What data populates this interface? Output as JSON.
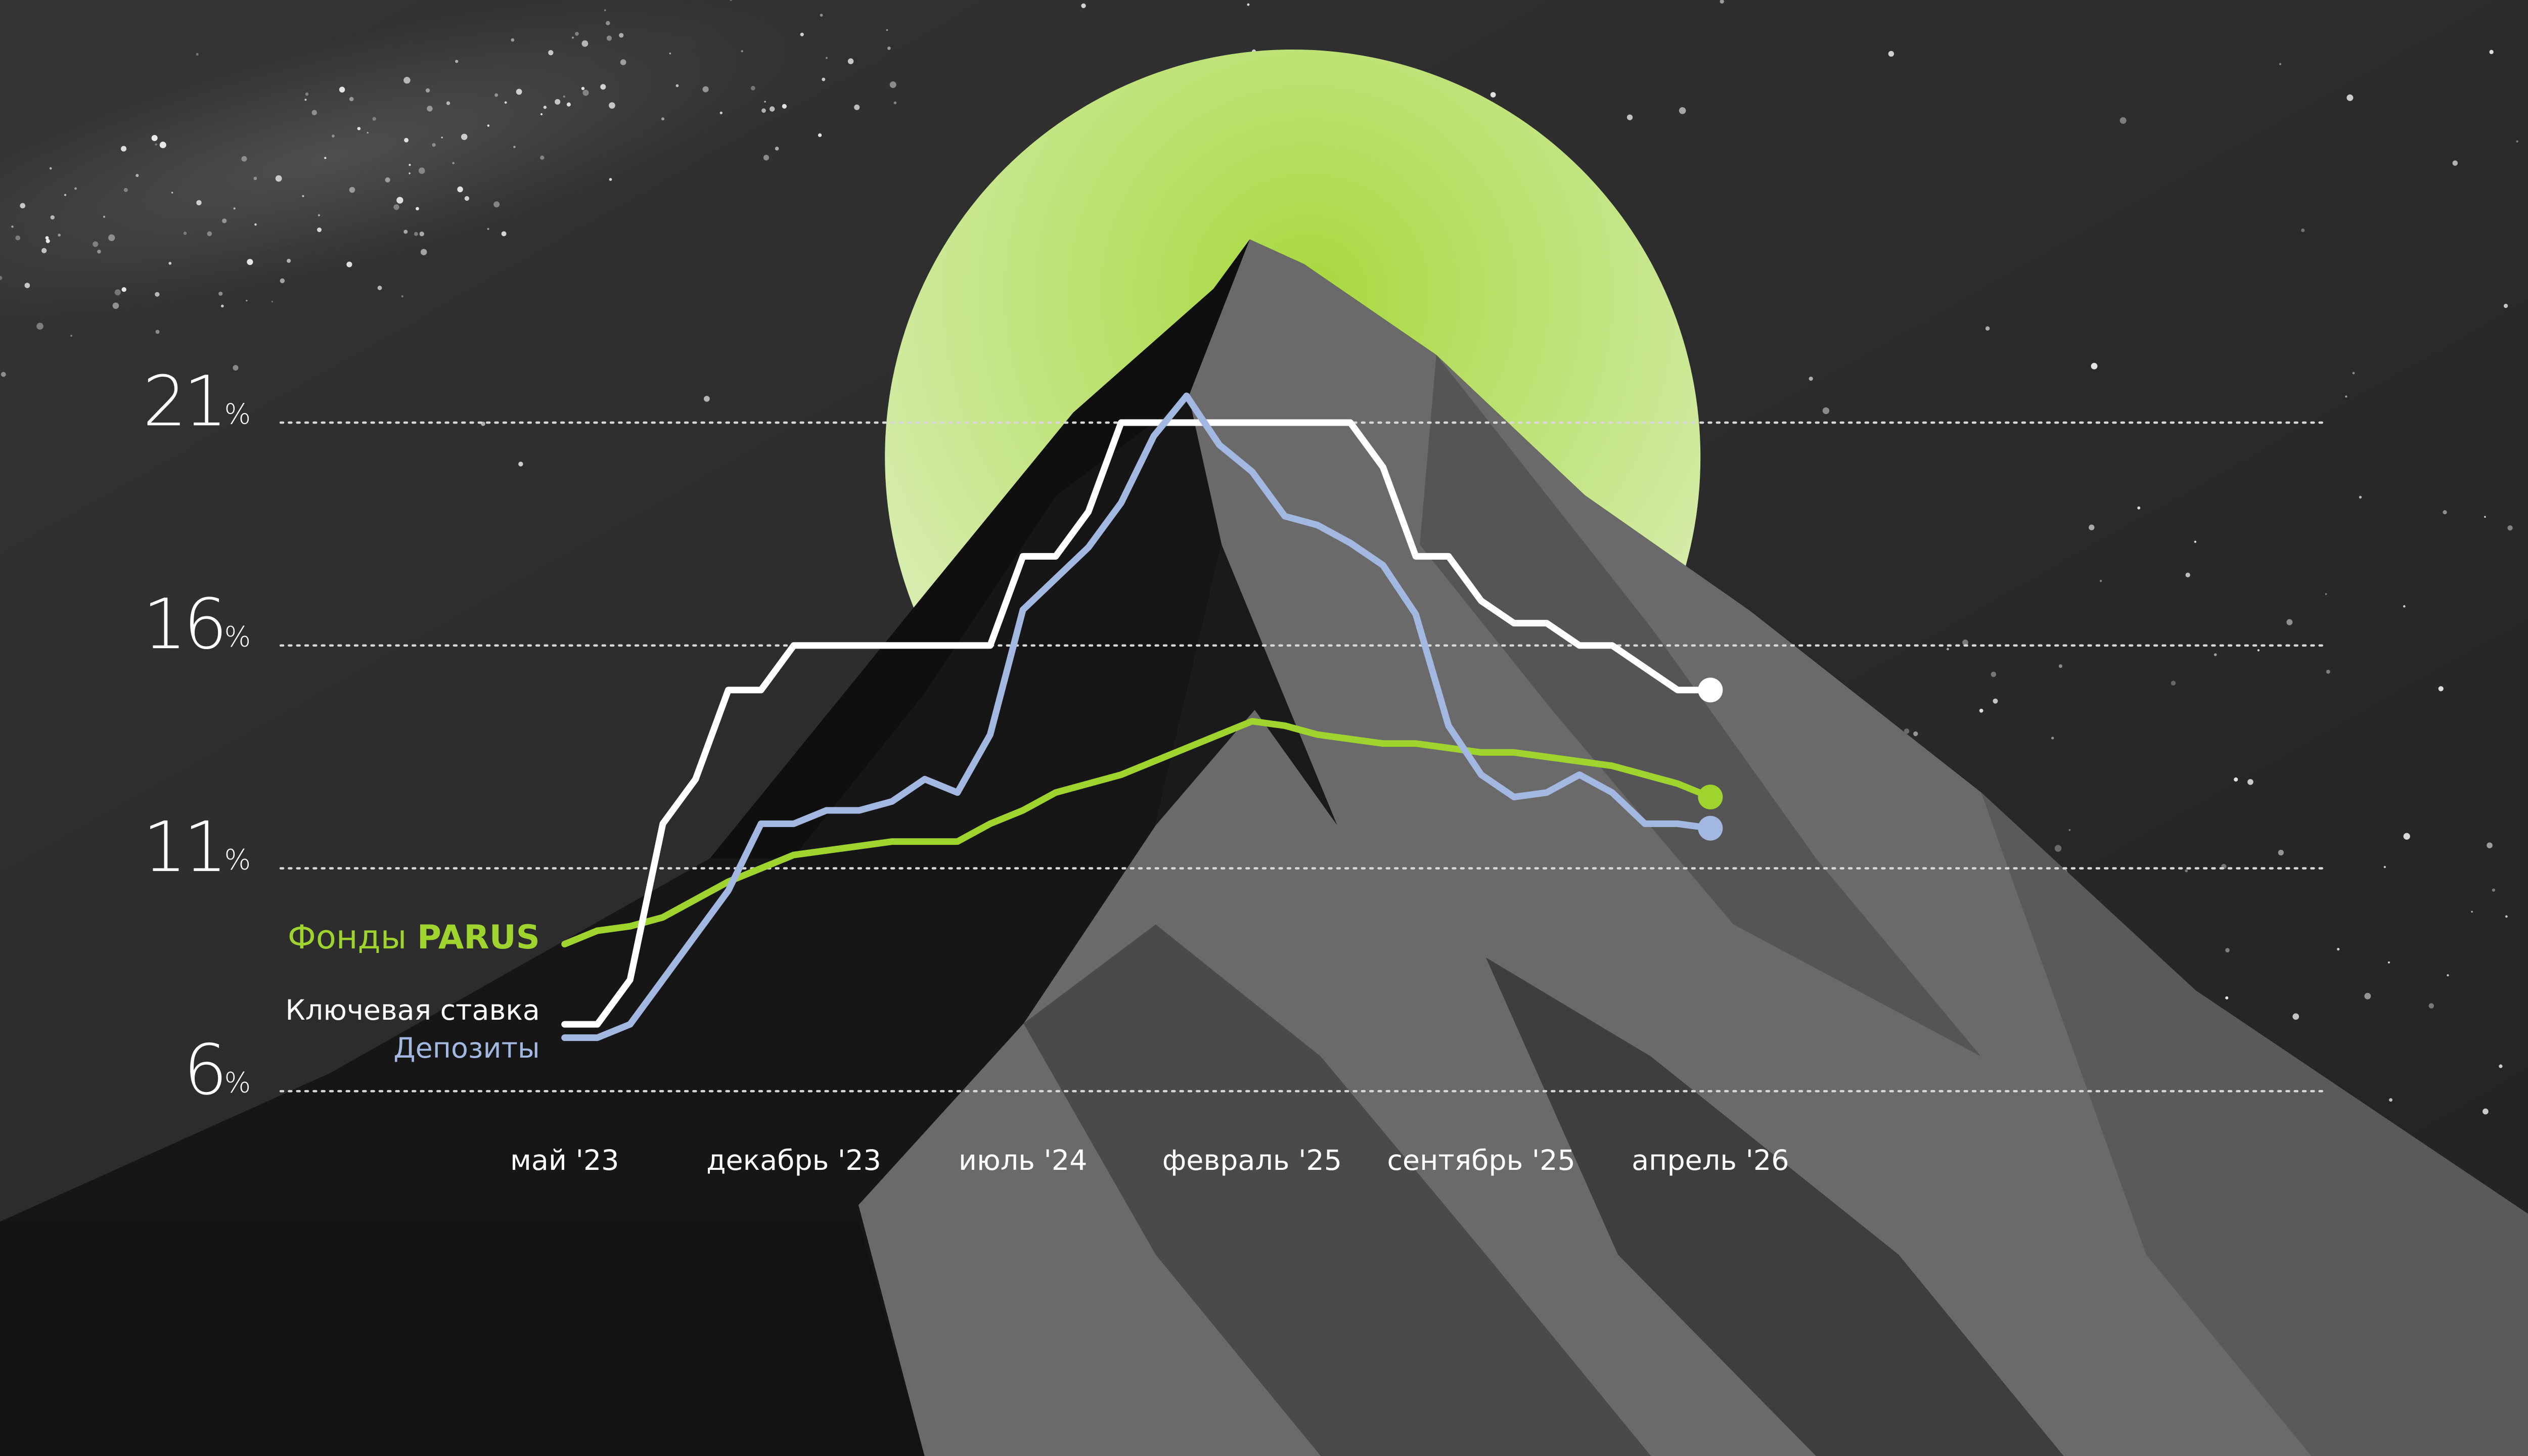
{
  "chart_data": {
    "type": "line",
    "categories": [
      "май '23",
      null,
      null,
      null,
      null,
      null,
      null,
      "декабрь '23",
      null,
      null,
      null,
      null,
      null,
      null,
      "июль '24",
      null,
      null,
      null,
      null,
      null,
      null,
      "февраль '25",
      null,
      null,
      null,
      null,
      null,
      null,
      "сентябрь '25",
      null,
      null,
      null,
      null,
      null,
      null,
      "апрель '26"
    ],
    "series": [
      {
        "name": "Фонды PARUS",
        "color": "#9fd32e",
        "values": [
          9.3,
          9.6,
          9.7,
          9.9,
          10.3,
          10.7,
          11.0,
          11.3,
          11.4,
          11.5,
          11.6,
          11.6,
          11.6,
          12.0,
          12.3,
          12.7,
          12.9,
          13.1,
          13.4,
          13.7,
          14.0,
          14.3,
          14.2,
          14.0,
          13.9,
          13.8,
          13.8,
          13.7,
          13.6,
          13.6,
          13.5,
          13.4,
          13.3,
          13.1,
          12.9,
          12.6
        ]
      },
      {
        "name": "Ключевая ставка",
        "color": "#ffffff",
        "values": [
          7.5,
          7.5,
          8.5,
          12,
          13,
          15,
          15,
          16,
          16,
          16,
          16,
          16,
          16,
          16,
          18,
          18,
          19,
          21,
          21,
          21,
          21,
          21,
          21,
          21,
          21,
          20,
          18,
          18,
          17,
          16.5,
          16.5,
          16,
          16,
          15.5,
          15,
          15
        ]
      },
      {
        "name": "Депозиты",
        "color": "#a3b8e0",
        "values": [
          7.2,
          7.2,
          7.5,
          8.5,
          9.5,
          10.5,
          12,
          12,
          12.3,
          12.3,
          12.5,
          13,
          12.7,
          14,
          16.8,
          17.5,
          18.2,
          19.2,
          20.7,
          21.6,
          20.5,
          19.9,
          18.9,
          18.7,
          18.3,
          17.8,
          16.7,
          14.2,
          13.1,
          12.6,
          12.7,
          13.1,
          12.7,
          12,
          12,
          11.9
        ]
      }
    ],
    "ylim": [
      6,
      21
    ],
    "yticks": [
      {
        "value": 6,
        "label": "6%"
      },
      {
        "value": 11,
        "label": "11%"
      },
      {
        "value": 16,
        "label": "16%"
      },
      {
        "value": 21,
        "label": "21%"
      }
    ],
    "grid": true
  }
}
